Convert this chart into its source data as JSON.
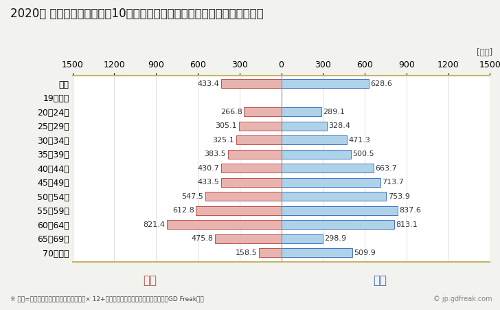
{
  "title": "2020年 民間企業（従業者数10人以上）フルタイム労働者の男女別平均年収",
  "unit_label": "[万円]",
  "categories": [
    "全体",
    "19歳以下",
    "20〜24歳",
    "25〜29歳",
    "30〜34歳",
    "35〜39歳",
    "40〜44歳",
    "45〜49歳",
    "50〜54歳",
    "55〜59歳",
    "60〜64歳",
    "65〜69歳",
    "70歳以上"
  ],
  "female_values": [
    433.4,
    0,
    266.8,
    305.1,
    325.1,
    383.5,
    430.7,
    433.5,
    547.5,
    612.8,
    821.4,
    475.8,
    158.5
  ],
  "male_values": [
    628.6,
    0,
    289.1,
    328.4,
    471.3,
    500.5,
    663.7,
    713.7,
    753.9,
    837.6,
    813.1,
    298.9,
    509.9
  ],
  "female_color": "#e8b4b0",
  "male_color": "#aed3e8",
  "female_border_color": "#c0504d",
  "male_border_color": "#4472c4",
  "female_label": "女性",
  "male_label": "男性",
  "female_label_color": "#c0504d",
  "male_label_color": "#4472c4",
  "xlim": 1500,
  "footnote": "※ 年収=「きまって支給する現金給与額」× 12+「年間賞与その他特別給与額」としてGD Freak推計",
  "watermark": "© jp.gdfreak.com",
  "background_color": "#f2f2ee",
  "plot_background_color": "#ffffff",
  "bar_height": 0.62,
  "title_fontsize": 12,
  "axis_fontsize": 9,
  "label_fontsize": 8,
  "legend_fontsize": 12
}
